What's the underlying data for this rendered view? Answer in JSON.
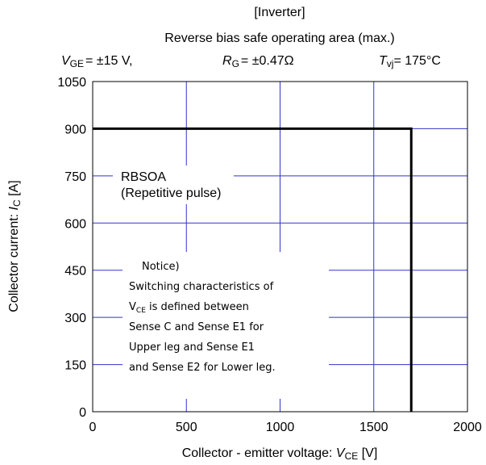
{
  "chart_data": {
    "type": "line",
    "title": "[Inverter]",
    "subtitle": "Reverse bias safe operating area (max.)",
    "conditions": [
      {
        "symbol": "V",
        "sub": "GE",
        "text": "= ±15 V,"
      },
      {
        "symbol": "R",
        "sub": "G",
        "text": "= ±0.47Ω"
      },
      {
        "symbol": "T",
        "sub": "vj",
        "text": "= 175°C"
      }
    ],
    "xlabel": {
      "text": "Collector - emitter voltage: ",
      "symbol": "V",
      "sub": "CE",
      "unit": " [V]"
    },
    "ylabel": {
      "text": "Collector current: ",
      "symbol": "I",
      "sub": "C",
      "unit": " [A]"
    },
    "series": [
      {
        "name": "RBSOA",
        "color": "#000000",
        "x": [
          0,
          1700,
          1700
        ],
        "values": [
          900,
          900,
          0
        ]
      }
    ],
    "annotations": {
      "rbsoa": [
        "RBSOA",
        "(Repetitive pulse)"
      ],
      "notice": {
        "title": "Notice)",
        "line1": "Switching characteristics of",
        "line2": {
          "symbol": "V",
          "sub": "CE",
          "text": " is defined between"
        },
        "line3": "Sense C and Sense E1 for",
        "line4": "Upper leg   and Sense  E1",
        "line5": "and Sense E2 for Lower  leg."
      }
    },
    "xlim": [
      0,
      2000
    ],
    "xticks": [
      0,
      500,
      1000,
      1500,
      2000
    ],
    "ylim": [
      0,
      1050
    ],
    "yticks": [
      0,
      150,
      300,
      450,
      600,
      750,
      900,
      1050
    ],
    "grid": true,
    "grid_color": "#3333cc"
  }
}
